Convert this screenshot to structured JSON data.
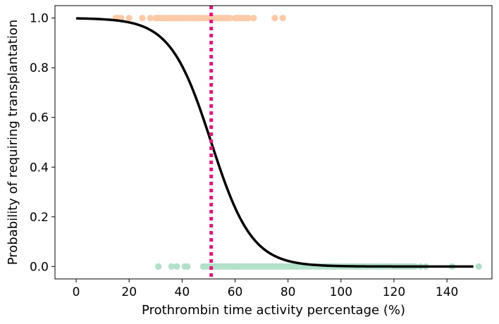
{
  "chart_data": {
    "type": "scatter",
    "xlabel": "Prothrombin time activity percentage (%)",
    "ylabel": "Probability of requiring transplantation",
    "xlim": [
      -8,
      157
    ],
    "ylim": [
      -0.05,
      1.05
    ],
    "xticks": [
      0,
      20,
      40,
      60,
      80,
      100,
      120,
      140
    ],
    "yticks": [
      0.0,
      0.2,
      0.4,
      0.6,
      0.8,
      1.0
    ],
    "xtick_labels": [
      "0",
      "20",
      "40",
      "60",
      "80",
      "100",
      "120",
      "140"
    ],
    "ytick_labels": [
      "0.0",
      "0.2",
      "0.4",
      "0.6",
      "0.8",
      "1.0"
    ],
    "grid": false,
    "colors": {
      "transplant_points": "#fdcaa8",
      "no_transplant_points": "#b3e0c8",
      "fit_curve": "#000000",
      "threshold_line": "#e5157f"
    },
    "threshold_x": 51,
    "logistic_fit": {
      "x_min": 0,
      "x_max": 150,
      "midpoint": 51,
      "slope": 0.13
    },
    "series": [
      {
        "y": 1,
        "x": [
          15,
          16,
          17,
          20,
          25,
          28,
          30,
          31,
          32,
          33,
          34,
          35,
          36,
          37,
          38,
          39,
          40,
          41,
          42,
          43,
          44,
          45,
          46,
          47,
          48,
          49,
          50,
          52,
          53,
          54,
          55,
          56,
          57,
          58,
          60,
          61,
          62,
          63,
          64,
          65,
          67,
          75,
          78
        ]
      },
      {
        "y": 0,
        "x": [
          31,
          36,
          38,
          41,
          42,
          48,
          49,
          50,
          51,
          52,
          53,
          54,
          55,
          56,
          57,
          58,
          59,
          60,
          61,
          62,
          63,
          64,
          65,
          66,
          67,
          68,
          69,
          70,
          71,
          72,
          73,
          74,
          75,
          76,
          77,
          78,
          79,
          80,
          81,
          82,
          83,
          84,
          85,
          86,
          87,
          88,
          89,
          90,
          91,
          92,
          93,
          94,
          95,
          96,
          97,
          98,
          99,
          100,
          101,
          102,
          103,
          104,
          105,
          106,
          107,
          108,
          109,
          110,
          111,
          112,
          113,
          114,
          115,
          116,
          117,
          118,
          119,
          120,
          121,
          122,
          123,
          124,
          125,
          126,
          127,
          128,
          130,
          132,
          142,
          152
        ]
      }
    ]
  }
}
